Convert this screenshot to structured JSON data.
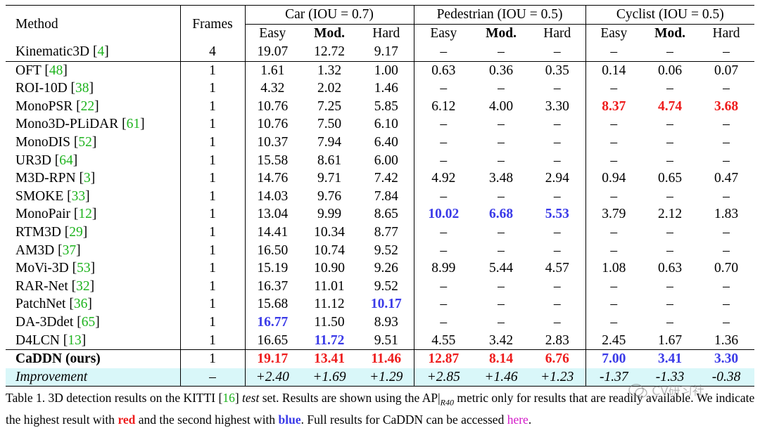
{
  "table": {
    "header": {
      "method": "Method",
      "frames": "Frames",
      "groups": [
        "Car (IOU = 0.7)",
        "Pedestrian (IOU = 0.5)",
        "Cyclist (IOU = 0.5)"
      ],
      "sub": [
        "Easy",
        "Mod.",
        "Hard"
      ]
    },
    "rows": [
      {
        "name": "Kinematic3D",
        "cite": "4",
        "frames": "4",
        "cells": [
          [
            "19.07",
            ""
          ],
          [
            "12.72",
            ""
          ],
          [
            "9.17",
            ""
          ],
          [
            "–",
            ""
          ],
          [
            "–",
            ""
          ],
          [
            "–",
            ""
          ],
          [
            "–",
            ""
          ],
          [
            "–",
            ""
          ],
          [
            "–",
            ""
          ]
        ]
      },
      {
        "name": "OFT",
        "cite": "48",
        "frames": "1",
        "cells": [
          [
            "1.61",
            ""
          ],
          [
            "1.32",
            ""
          ],
          [
            "1.00",
            ""
          ],
          [
            "0.63",
            ""
          ],
          [
            "0.36",
            ""
          ],
          [
            "0.35",
            ""
          ],
          [
            "0.14",
            ""
          ],
          [
            "0.06",
            ""
          ],
          [
            "0.07",
            ""
          ]
        ]
      },
      {
        "name": "ROI-10D",
        "cite": "38",
        "frames": "1",
        "cells": [
          [
            "4.32",
            ""
          ],
          [
            "2.02",
            ""
          ],
          [
            "1.46",
            ""
          ],
          [
            "–",
            ""
          ],
          [
            "–",
            ""
          ],
          [
            "–",
            ""
          ],
          [
            "–",
            ""
          ],
          [
            "–",
            ""
          ],
          [
            "–",
            ""
          ]
        ]
      },
      {
        "name": "MonoPSR",
        "cite": "22",
        "frames": "1",
        "cells": [
          [
            "10.76",
            ""
          ],
          [
            "7.25",
            ""
          ],
          [
            "5.85",
            ""
          ],
          [
            "6.12",
            ""
          ],
          [
            "4.00",
            ""
          ],
          [
            "3.30",
            ""
          ],
          [
            "8.37",
            "red"
          ],
          [
            "4.74",
            "red"
          ],
          [
            "3.68",
            "red"
          ]
        ]
      },
      {
        "name": "Mono3D-PLiDAR",
        "cite": "61",
        "frames": "1",
        "cells": [
          [
            "10.76",
            ""
          ],
          [
            "7.50",
            ""
          ],
          [
            "6.10",
            ""
          ],
          [
            "–",
            ""
          ],
          [
            "–",
            ""
          ],
          [
            "–",
            ""
          ],
          [
            "–",
            ""
          ],
          [
            "–",
            ""
          ],
          [
            "–",
            ""
          ]
        ]
      },
      {
        "name": "MonoDIS",
        "cite": "52",
        "frames": "1",
        "cells": [
          [
            "10.37",
            ""
          ],
          [
            "7.94",
            ""
          ],
          [
            "6.40",
            ""
          ],
          [
            "–",
            ""
          ],
          [
            "–",
            ""
          ],
          [
            "–",
            ""
          ],
          [
            "–",
            ""
          ],
          [
            "–",
            ""
          ],
          [
            "–",
            ""
          ]
        ]
      },
      {
        "name": "UR3D",
        "cite": "64",
        "frames": "1",
        "cells": [
          [
            "15.58",
            ""
          ],
          [
            "8.61",
            ""
          ],
          [
            "6.00",
            ""
          ],
          [
            "–",
            ""
          ],
          [
            "–",
            ""
          ],
          [
            "–",
            ""
          ],
          [
            "–",
            ""
          ],
          [
            "–",
            ""
          ],
          [
            "–",
            ""
          ]
        ]
      },
      {
        "name": "M3D-RPN",
        "cite": "3",
        "frames": "1",
        "cells": [
          [
            "14.76",
            ""
          ],
          [
            "9.71",
            ""
          ],
          [
            "7.42",
            ""
          ],
          [
            "4.92",
            ""
          ],
          [
            "3.48",
            ""
          ],
          [
            "2.94",
            ""
          ],
          [
            "0.94",
            ""
          ],
          [
            "0.65",
            ""
          ],
          [
            "0.47",
            ""
          ]
        ]
      },
      {
        "name": "SMOKE",
        "cite": "33",
        "frames": "1",
        "cells": [
          [
            "14.03",
            ""
          ],
          [
            "9.76",
            ""
          ],
          [
            "7.84",
            ""
          ],
          [
            "–",
            ""
          ],
          [
            "–",
            ""
          ],
          [
            "–",
            ""
          ],
          [
            "–",
            ""
          ],
          [
            "–",
            ""
          ],
          [
            "–",
            ""
          ]
        ]
      },
      {
        "name": "MonoPair",
        "cite": "12",
        "frames": "1",
        "cells": [
          [
            "13.04",
            ""
          ],
          [
            "9.99",
            ""
          ],
          [
            "8.65",
            ""
          ],
          [
            "10.02",
            "blue"
          ],
          [
            "6.68",
            "blue"
          ],
          [
            "5.53",
            "blue"
          ],
          [
            "3.79",
            ""
          ],
          [
            "2.12",
            ""
          ],
          [
            "1.83",
            ""
          ]
        ]
      },
      {
        "name": "RTM3D",
        "cite": "29",
        "frames": "1",
        "cells": [
          [
            "14.41",
            ""
          ],
          [
            "10.34",
            ""
          ],
          [
            "8.77",
            ""
          ],
          [
            "–",
            ""
          ],
          [
            "–",
            ""
          ],
          [
            "–",
            ""
          ],
          [
            "–",
            ""
          ],
          [
            "–",
            ""
          ],
          [
            "–",
            ""
          ]
        ]
      },
      {
        "name": "AM3D",
        "cite": "37",
        "frames": "1",
        "cells": [
          [
            "16.50",
            ""
          ],
          [
            "10.74",
            ""
          ],
          [
            "9.52",
            ""
          ],
          [
            "–",
            ""
          ],
          [
            "–",
            ""
          ],
          [
            "–",
            ""
          ],
          [
            "–",
            ""
          ],
          [
            "–",
            ""
          ],
          [
            "–",
            ""
          ]
        ]
      },
      {
        "name": "MoVi-3D",
        "cite": "53",
        "frames": "1",
        "cells": [
          [
            "15.19",
            ""
          ],
          [
            "10.90",
            ""
          ],
          [
            "9.26",
            ""
          ],
          [
            "8.99",
            ""
          ],
          [
            "5.44",
            ""
          ],
          [
            "4.57",
            ""
          ],
          [
            "1.08",
            ""
          ],
          [
            "0.63",
            ""
          ],
          [
            "0.70",
            ""
          ]
        ]
      },
      {
        "name": "RAR-Net",
        "cite": "32",
        "frames": "1",
        "cells": [
          [
            "16.37",
            ""
          ],
          [
            "11.01",
            ""
          ],
          [
            "9.52",
            ""
          ],
          [
            "–",
            ""
          ],
          [
            "–",
            ""
          ],
          [
            "–",
            ""
          ],
          [
            "–",
            ""
          ],
          [
            "–",
            ""
          ],
          [
            "–",
            ""
          ]
        ]
      },
      {
        "name": "PatchNet",
        "cite": "36",
        "frames": "1",
        "cells": [
          [
            "15.68",
            ""
          ],
          [
            "11.12",
            ""
          ],
          [
            "10.17",
            "blue"
          ],
          [
            "–",
            ""
          ],
          [
            "–",
            ""
          ],
          [
            "–",
            ""
          ],
          [
            "–",
            ""
          ],
          [
            "–",
            ""
          ],
          [
            "–",
            ""
          ]
        ]
      },
      {
        "name": "DA-3Ddet",
        "cite": "65",
        "frames": "1",
        "cells": [
          [
            "16.77",
            "blue"
          ],
          [
            "11.50",
            ""
          ],
          [
            "8.93",
            ""
          ],
          [
            "–",
            ""
          ],
          [
            "–",
            ""
          ],
          [
            "–",
            ""
          ],
          [
            "–",
            ""
          ],
          [
            "–",
            ""
          ],
          [
            "–",
            ""
          ]
        ]
      },
      {
        "name": "D4LCN",
        "cite": "13",
        "frames": "1",
        "cells": [
          [
            "16.65",
            ""
          ],
          [
            "11.72",
            "blue"
          ],
          [
            "9.51",
            ""
          ],
          [
            "4.55",
            ""
          ],
          [
            "3.42",
            ""
          ],
          [
            "2.83",
            ""
          ],
          [
            "2.45",
            ""
          ],
          [
            "1.67",
            ""
          ],
          [
            "1.36",
            ""
          ]
        ]
      }
    ],
    "ours": {
      "name": "CaDDN (ours)",
      "frames": "1",
      "cells": [
        [
          "19.17",
          "red"
        ],
        [
          "13.41",
          "red"
        ],
        [
          "11.46",
          "red"
        ],
        [
          "12.87",
          "red"
        ],
        [
          "8.14",
          "red"
        ],
        [
          "6.76",
          "red"
        ],
        [
          "7.00",
          "blue"
        ],
        [
          "3.41",
          "blue"
        ],
        [
          "3.30",
          "blue"
        ]
      ]
    },
    "improvement": {
      "name": "Improvement",
      "frames": "–",
      "cells": [
        "+2.40",
        "+1.69",
        "+1.29",
        "+2.85",
        "+1.46",
        "+1.23",
        "-1.37",
        "-1.33",
        "-0.38"
      ]
    }
  },
  "caption": {
    "p1": "Table 1. 3D detection results on the KITTI [",
    "cite": "16",
    "p2": "] ",
    "test": "test",
    "p3": " set. Results are shown using the AP|",
    "sub": "R40",
    "p4": " metric only for results that are readily available. We indicate the highest result with ",
    "red": "red",
    "p5": " and the second highest with ",
    "blue": "blue",
    "p6": ". Full results for CaDDN can be accessed ",
    "link": "here",
    "p7": "."
  },
  "watermark": {
    "text": "CV研习社",
    "icon": "wechat-icon"
  }
}
